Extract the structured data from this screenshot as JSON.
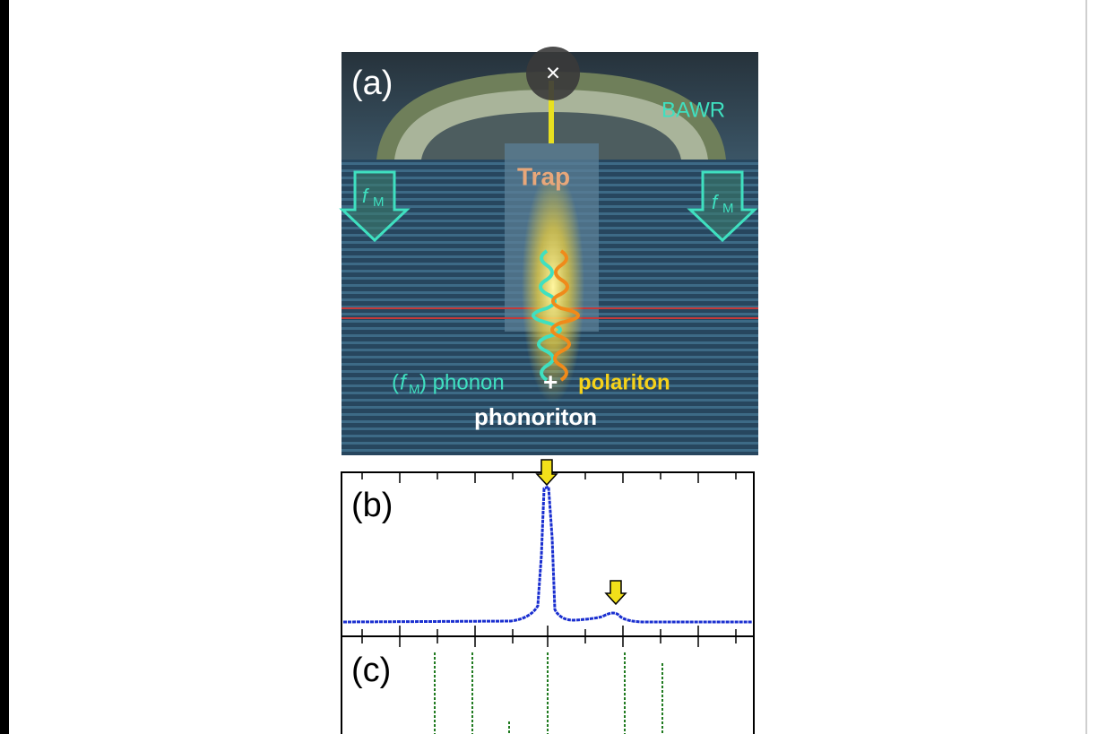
{
  "viewer": {
    "close_button": "×"
  },
  "figure": {
    "panel_a": {
      "label": "(a)",
      "bawr": "BAWR",
      "trap": "Trap",
      "fm_symbol": "f",
      "fm_subscript": "M",
      "phonon_open": "(",
      "phonon_close": ") phonon",
      "plus": "+",
      "polariton": "polariton",
      "phonoriton": "phonoriton"
    },
    "panel_b": {
      "label": "(b)"
    },
    "panel_c": {
      "label": "(c)"
    }
  }
}
